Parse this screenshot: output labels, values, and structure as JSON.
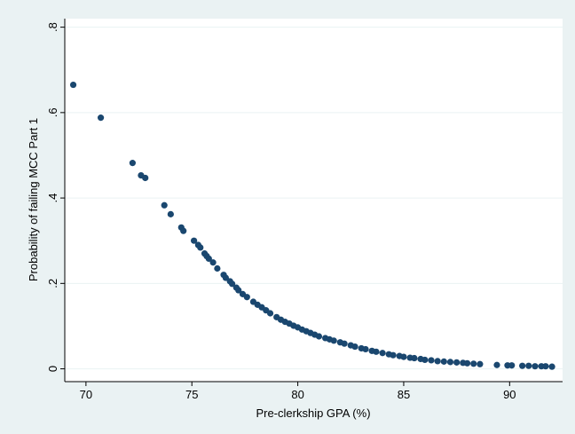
{
  "colors": {
    "outer_background": "#eaf2f3",
    "plot_background": "#ffffff",
    "gridline": "#eaf2f3",
    "marker": "#1a476f",
    "axis": "#000000"
  },
  "chart_data": {
    "type": "scatter",
    "title": "",
    "xlabel": "Pre-clerkship GPA (%)",
    "ylabel": "Probability of failing MCC Part 1",
    "xlim": [
      69,
      92.5
    ],
    "ylim": [
      -0.03,
      0.82
    ],
    "xticks": [
      70,
      75,
      80,
      85,
      90
    ],
    "xtick_labels": [
      "70",
      "75",
      "80",
      "85",
      "90"
    ],
    "yticks": [
      0,
      0.2,
      0.4,
      0.6,
      0.8
    ],
    "ytick_labels": [
      "0",
      ".2",
      ".4",
      ".6",
      ".8"
    ],
    "ytick_label_rotation": "vertical",
    "grid": "horizontal",
    "legend": "none",
    "marker": "filled circle",
    "series": [
      {
        "points": [
          [
            69.4,
            0.665
          ],
          [
            70.7,
            0.588
          ],
          [
            72.2,
            0.482
          ],
          [
            72.6,
            0.453
          ],
          [
            72.8,
            0.447
          ],
          [
            73.7,
            0.383
          ],
          [
            74.0,
            0.362
          ],
          [
            74.5,
            0.331
          ],
          [
            74.6,
            0.323
          ],
          [
            75.1,
            0.3
          ],
          [
            75.3,
            0.29
          ],
          [
            75.4,
            0.284
          ],
          [
            75.6,
            0.27
          ],
          [
            75.7,
            0.264
          ],
          [
            75.8,
            0.258
          ],
          [
            76.0,
            0.249
          ],
          [
            76.2,
            0.235
          ],
          [
            76.5,
            0.22
          ],
          [
            76.6,
            0.213
          ],
          [
            76.8,
            0.205
          ],
          [
            76.9,
            0.199
          ],
          [
            77.1,
            0.19
          ],
          [
            77.2,
            0.184
          ],
          [
            77.4,
            0.175
          ],
          [
            77.6,
            0.168
          ],
          [
            77.9,
            0.157
          ],
          [
            78.1,
            0.15
          ],
          [
            78.3,
            0.144
          ],
          [
            78.5,
            0.137
          ],
          [
            78.7,
            0.13
          ],
          [
            79.0,
            0.121
          ],
          [
            79.2,
            0.115
          ],
          [
            79.4,
            0.11
          ],
          [
            79.6,
            0.106
          ],
          [
            79.8,
            0.101
          ],
          [
            80.0,
            0.097
          ],
          [
            80.2,
            0.092
          ],
          [
            80.4,
            0.088
          ],
          [
            80.6,
            0.084
          ],
          [
            80.8,
            0.08
          ],
          [
            81.0,
            0.076
          ],
          [
            81.3,
            0.072
          ],
          [
            81.5,
            0.069
          ],
          [
            81.7,
            0.066
          ],
          [
            82.0,
            0.062
          ],
          [
            82.2,
            0.059
          ],
          [
            82.5,
            0.055
          ],
          [
            82.7,
            0.052
          ],
          [
            83.0,
            0.048
          ],
          [
            83.2,
            0.046
          ],
          [
            83.5,
            0.042
          ],
          [
            83.7,
            0.04
          ],
          [
            84.0,
            0.037
          ],
          [
            84.3,
            0.034
          ],
          [
            84.5,
            0.032
          ],
          [
            84.8,
            0.03
          ],
          [
            85.0,
            0.028
          ],
          [
            85.3,
            0.026
          ],
          [
            85.5,
            0.025
          ],
          [
            85.8,
            0.023
          ],
          [
            86.0,
            0.021
          ],
          [
            86.3,
            0.02
          ],
          [
            86.6,
            0.018
          ],
          [
            86.9,
            0.017
          ],
          [
            87.2,
            0.016
          ],
          [
            87.5,
            0.015
          ],
          [
            87.8,
            0.014
          ],
          [
            88.0,
            0.013
          ],
          [
            88.3,
            0.012
          ],
          [
            88.6,
            0.011
          ],
          [
            89.4,
            0.009
          ],
          [
            89.9,
            0.008
          ],
          [
            90.1,
            0.008
          ],
          [
            90.6,
            0.007
          ],
          [
            90.9,
            0.007
          ],
          [
            91.2,
            0.006
          ],
          [
            91.5,
            0.006
          ],
          [
            91.7,
            0.006
          ],
          [
            92.0,
            0.005
          ]
        ]
      }
    ]
  }
}
